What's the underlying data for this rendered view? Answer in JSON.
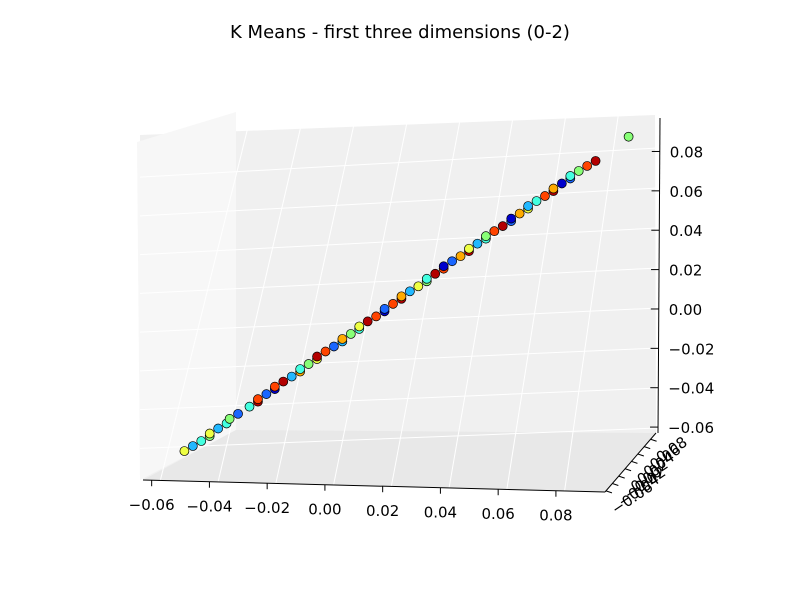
{
  "chart_data": {
    "type": "scatter",
    "title": "K Means - first three dimensions (0-2)",
    "xlabel": "",
    "ylabel": "",
    "zlabel": "",
    "projection": "3d",
    "grid": true,
    "legend": "none",
    "x_ticks": [
      "−0.06",
      "−0.04",
      "−0.02",
      "0.00",
      "0.02",
      "0.04",
      "0.06",
      "0.08"
    ],
    "y_ticks": [
      "−0.06",
      "−0.04",
      "−0.02",
      "0.00",
      "0.02",
      "0.04",
      "0.06",
      "0.08"
    ],
    "z_ticks": [
      "−0.06",
      "−0.04",
      "−0.02",
      "0.00",
      "0.02",
      "0.04",
      "0.06",
      "0.08"
    ],
    "xlim": [
      -0.065,
      0.085
    ],
    "ylim": [
      -0.065,
      0.085
    ],
    "zlim": [
      -0.065,
      0.085
    ],
    "cluster_colors": [
      "#0000cc",
      "#1a66ff",
      "#22b8ff",
      "#44ffe0",
      "#88ff77",
      "#eeff44",
      "#ffaa00",
      "#ff4400",
      "#b30000"
    ],
    "points_t": [
      -0.052,
      -0.05,
      -0.048,
      -0.046,
      -0.044,
      -0.042,
      -0.04,
      -0.037,
      -0.035,
      -0.032,
      -0.03,
      -0.028,
      -0.026,
      -0.024,
      -0.022,
      -0.02,
      -0.018,
      -0.016,
      -0.014,
      -0.012,
      -0.01,
      -0.008,
      -0.006,
      -0.004,
      -0.002,
      0.0,
      0.002,
      0.004,
      0.006,
      0.008,
      0.01,
      0.012,
      0.014,
      0.016,
      0.018,
      0.02,
      0.022,
      0.024,
      0.026,
      0.028,
      0.03,
      0.032,
      0.034,
      0.036,
      0.038,
      0.04,
      0.042,
      0.044,
      0.046,
      0.048,
      0.05,
      0.052,
      0.054,
      0.056,
      0.058,
      0.06,
      0.062,
      0.064,
      0.066,
      0.068,
      0.07,
      0.072,
      0.074,
      0.076,
      0.078,
      0.08,
      0.082,
      0.083
    ],
    "points_cluster": [
      5,
      2,
      3,
      4,
      5,
      2,
      3,
      4,
      1,
      3,
      8,
      7,
      1,
      0,
      7,
      8,
      2,
      6,
      3,
      4,
      5,
      8,
      7,
      1,
      2,
      6,
      4,
      3,
      5,
      8,
      7,
      0,
      1,
      7,
      8,
      6,
      2,
      5,
      4,
      3,
      8,
      7,
      0,
      1,
      6,
      8,
      5,
      2,
      3,
      4,
      7,
      8,
      1,
      0,
      6,
      5,
      2,
      3,
      7,
      8,
      6,
      0,
      1,
      3,
      4,
      7,
      8,
      4
    ]
  }
}
